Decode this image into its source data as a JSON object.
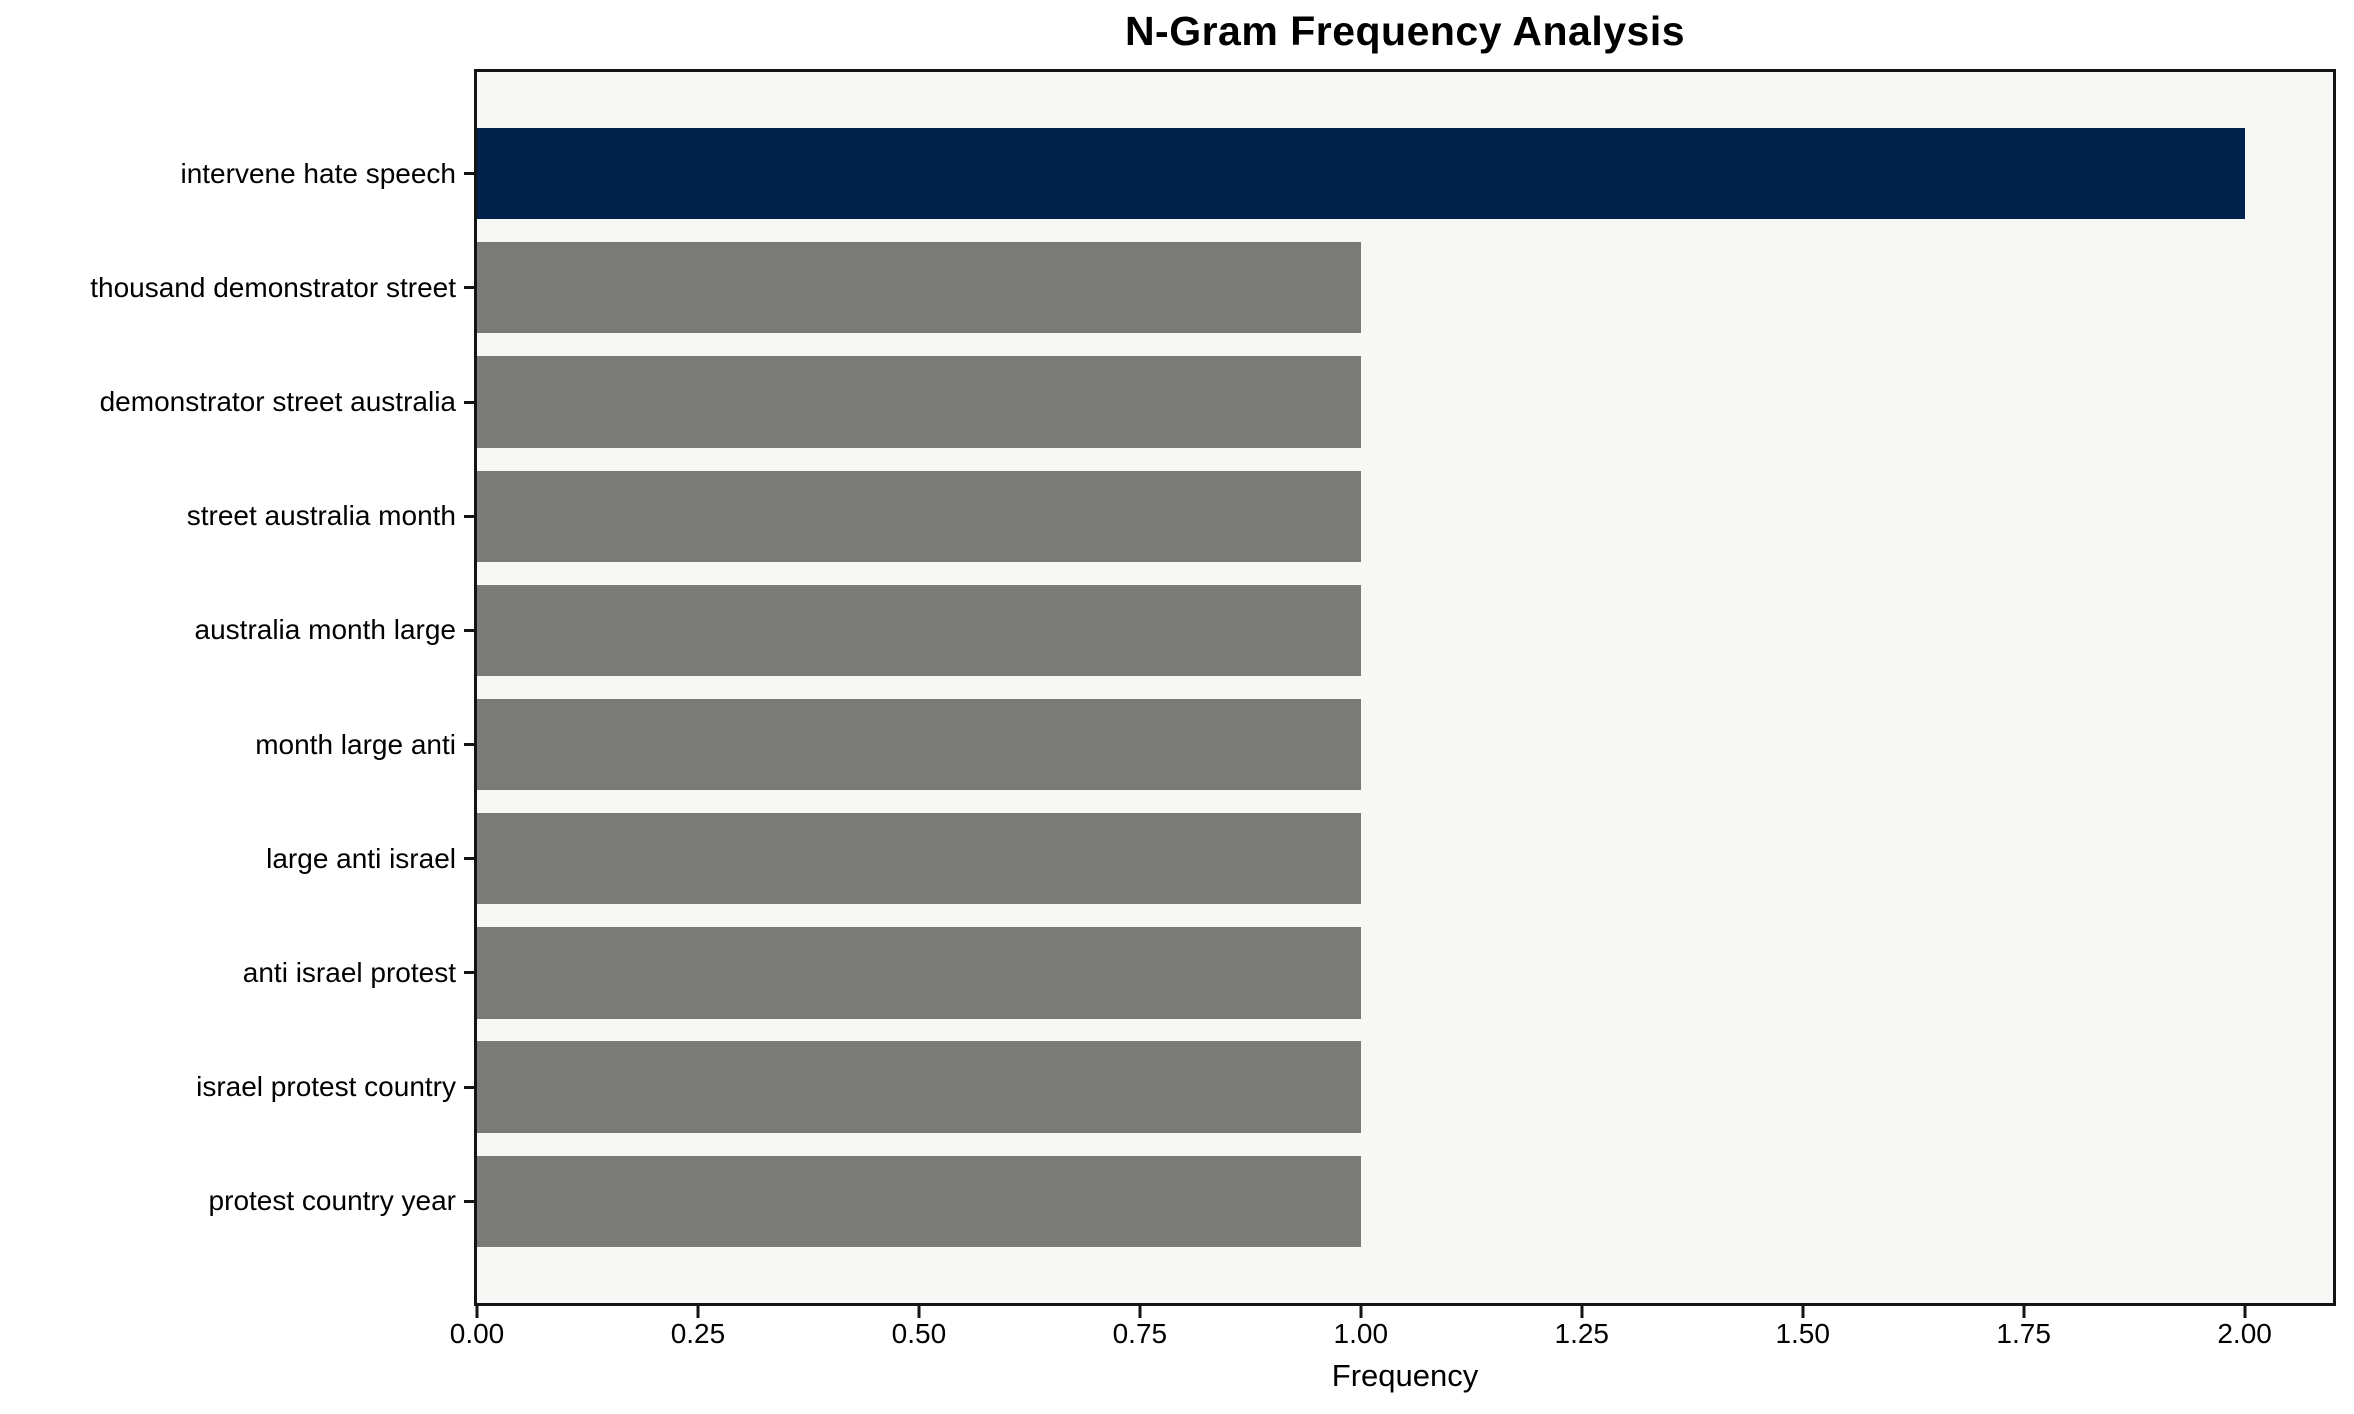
{
  "chart_data": {
    "type": "bar",
    "orientation": "horizontal",
    "title": "N-Gram Frequency Analysis",
    "xlabel": "Frequency",
    "ylabel": "",
    "categories": [
      "intervene hate speech",
      "thousand demonstrator street",
      "demonstrator street australia",
      "street australia month",
      "australia month large",
      "month large anti",
      "large anti israel",
      "anti israel protest",
      "israel protest country",
      "protest country year"
    ],
    "values": [
      2,
      1,
      1,
      1,
      1,
      1,
      1,
      1,
      1,
      1
    ],
    "bar_colors": [
      "#00224d",
      "#7a7a78",
      "#7a7a78",
      "#7a7a78",
      "#7a7a78",
      "#7a7a78",
      "#7a7a78",
      "#7a7a78",
      "#7a7a78",
      "#7a7a78"
    ],
    "xlim": [
      0,
      2.1
    ],
    "xtick_labels": [
      "0.00",
      "0.25",
      "0.50",
      "0.75",
      "1.00",
      "1.25",
      "1.50",
      "1.75",
      "2.00"
    ],
    "xtick_values": [
      0,
      0.25,
      0.5,
      0.75,
      1.0,
      1.25,
      1.5,
      1.75,
      2.0
    ],
    "grid": false,
    "legend": null,
    "colors": {
      "highlight_bar": "#00224d",
      "default_bar": "#7a7a78",
      "plot_background": "#f7f7f6",
      "figure_background": "#ffffff",
      "spine": "#141414",
      "text": "#000000"
    }
  }
}
